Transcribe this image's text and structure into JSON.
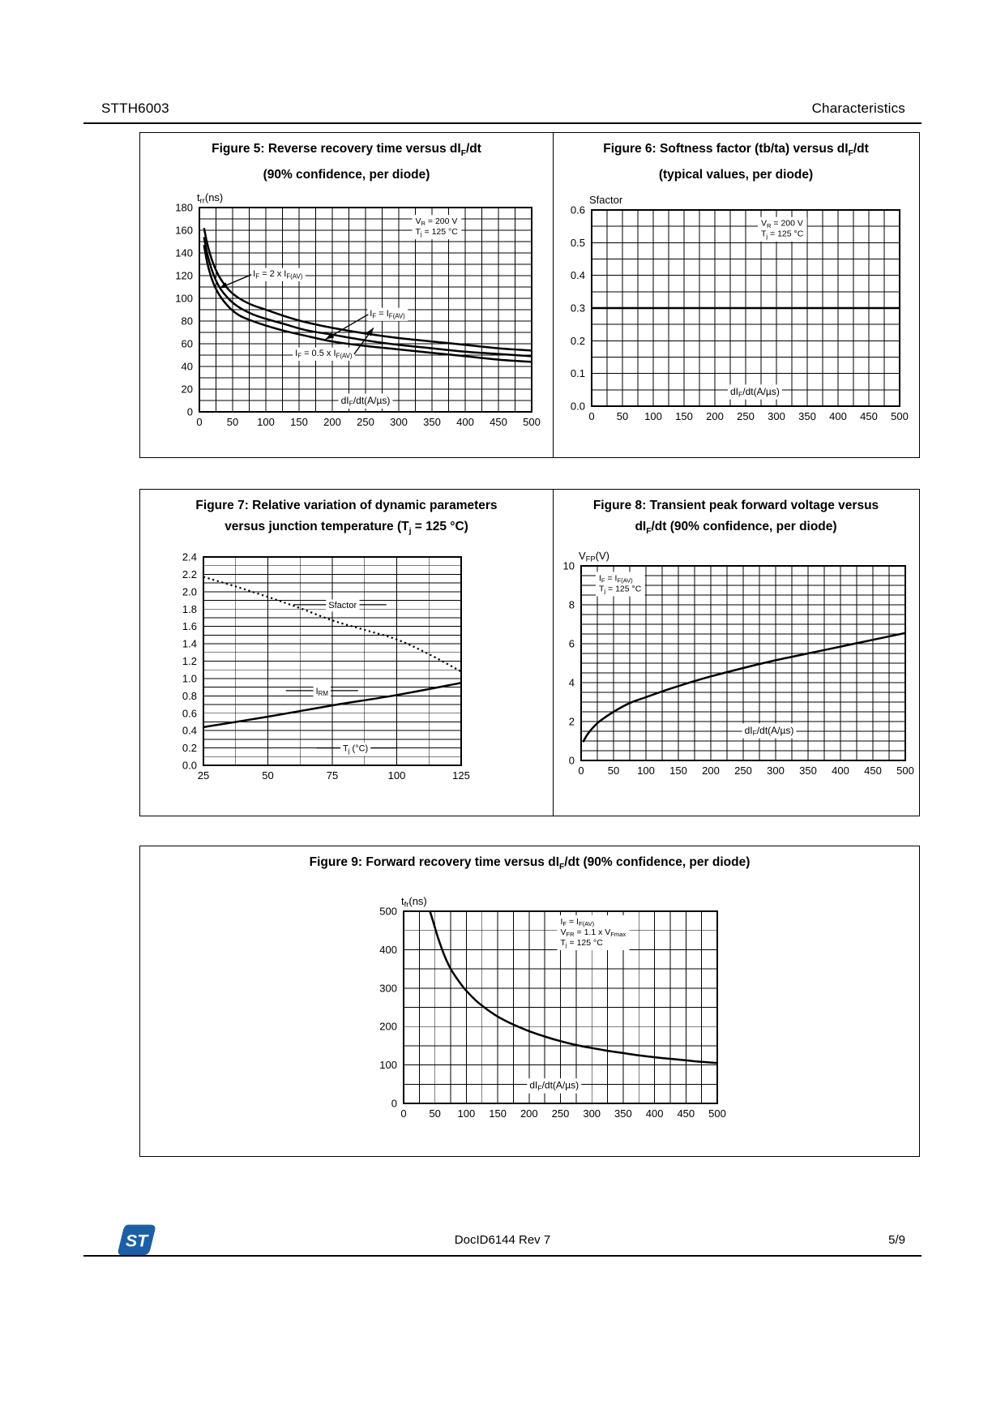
{
  "header": {
    "left": "STTH6003",
    "right": "Characteristics"
  },
  "footer": {
    "doc_id": "DocID6144 Rev 7",
    "page": "5/9",
    "logo_text": "ST",
    "logo_color": "#1d5fa5"
  },
  "figures": {
    "fig5": {
      "title1": [
        {
          "t": "Figure 5: Reverse recovery time versus dI"
        },
        {
          "t": "F",
          "sub": true
        },
        {
          "t": "/dt"
        }
      ],
      "title2": [
        {
          "t": "(90% confidence, per diode)"
        }
      ]
    },
    "fig6": {
      "title1": [
        {
          "t": "Figure 6: Softness factor (tb/ta) versus dI"
        },
        {
          "t": "F",
          "sub": true
        },
        {
          "t": "/dt"
        }
      ],
      "title2": [
        {
          "t": "(typical values, per diode)"
        }
      ]
    },
    "fig7": {
      "title1": [
        {
          "t": "Figure 7: Relative variation of dynamic parameters"
        }
      ],
      "title2": [
        {
          "t": "versus junction temperature (T"
        },
        {
          "t": "j",
          "sub": true
        },
        {
          "t": " = 125 °C)"
        }
      ]
    },
    "fig8": {
      "title1": [
        {
          "t": "Figure 8: Transient peak forward voltage versus"
        }
      ],
      "title2": [
        {
          "t": "dI"
        },
        {
          "t": "F",
          "sub": true
        },
        {
          "t": "/dt (90% confidence, per diode)"
        }
      ]
    },
    "fig9": {
      "title1": [
        {
          "t": "Figure 9: Forward recovery time versus dI"
        },
        {
          "t": "F",
          "sub": true
        },
        {
          "t": "/dt (90% confidence, per diode)"
        }
      ]
    }
  },
  "chart_data": [
    {
      "id": "fig5",
      "type": "line",
      "title": "Reverse recovery time versus dIF/dt (90% confidence, per diode)",
      "xlabel": "dIF/dt(A/µs)",
      "ylabel": "trr(ns)",
      "xlim": [
        0,
        500
      ],
      "ylim": [
        0,
        180
      ],
      "x_tick_step": 50,
      "y_tick_step": 20,
      "x_grid_step": 25,
      "y_grid_step": 10,
      "x_decimals": 0,
      "y_decimals": 0,
      "grid": true,
      "legend_position": "inline-callouts",
      "axis_title": [
        {
          "t": "t"
        },
        {
          "t": "rr",
          "sub": true
        },
        {
          "t": "(ns)"
        }
      ],
      "xlabel_inside": {
        "x": 250,
        "y": 10,
        "segs": [
          {
            "t": "dI"
          },
          {
            "t": "F",
            "sub": true
          },
          {
            "t": "/dt(A/µs)"
          }
        ]
      },
      "conditions": {
        "fx": 0.65,
        "fy": 0.04,
        "lines": [
          [
            {
              "t": "V"
            },
            {
              "t": "R",
              "sub": true
            },
            {
              "t": " = 200 V"
            }
          ],
          [
            {
              "t": "T"
            },
            {
              "t": "j",
              "sub": true
            },
            {
              "t": " = 125 °C"
            }
          ]
        ]
      },
      "series": [
        {
          "name": "IF = 2 x IF(AV)",
          "style": "solid",
          "points": [
            [
              7,
              162
            ],
            [
              12,
              148
            ],
            [
              20,
              132
            ],
            [
              30,
              119
            ],
            [
              45,
              107
            ],
            [
              60,
              100
            ],
            [
              80,
              94
            ],
            [
              100,
              90
            ],
            [
              130,
              84
            ],
            [
              160,
              79
            ],
            [
              200,
              74
            ],
            [
              250,
              69
            ],
            [
              300,
              65
            ],
            [
              350,
              62
            ],
            [
              400,
              59
            ],
            [
              450,
              56
            ],
            [
              500,
              54
            ]
          ]
        },
        {
          "name": "IF = IF(AV)",
          "style": "solid",
          "points": [
            [
              7,
              154
            ],
            [
              12,
              139
            ],
            [
              20,
              123
            ],
            [
              30,
              110
            ],
            [
              45,
              99
            ],
            [
              60,
              92
            ],
            [
              80,
              86
            ],
            [
              100,
              82
            ],
            [
              130,
              77
            ],
            [
              160,
              72
            ],
            [
              200,
              68
            ],
            [
              250,
              63
            ],
            [
              300,
              59
            ],
            [
              350,
              56
            ],
            [
              400,
              53
            ],
            [
              450,
              51
            ],
            [
              500,
              49
            ]
          ]
        },
        {
          "name": "IF = 0.5 x IF(AV)",
          "style": "solid",
          "points": [
            [
              7,
              147
            ],
            [
              12,
              131
            ],
            [
              20,
              115
            ],
            [
              30,
              103
            ],
            [
              45,
              92
            ],
            [
              60,
              85
            ],
            [
              80,
              80
            ],
            [
              100,
              76
            ],
            [
              130,
              71
            ],
            [
              160,
              67
            ],
            [
              200,
              62
            ],
            [
              250,
              58
            ],
            [
              300,
              55
            ],
            [
              350,
              52
            ],
            [
              400,
              49
            ],
            [
              450,
              46
            ],
            [
              500,
              44
            ]
          ]
        }
      ],
      "callouts": [
        {
          "segs": [
            {
              "t": "I"
            },
            {
              "t": "F",
              "sub": true
            },
            {
              "t": " = 2 x I"
            },
            {
              "t": "F(AV)",
              "sub": true
            }
          ],
          "x": 118,
          "y": 122,
          "arrow": [
            30,
            109
          ]
        },
        {
          "segs": [
            {
              "t": "I"
            },
            {
              "t": "F",
              "sub": true
            },
            {
              "t": " = I"
            },
            {
              "t": "F(AV)",
              "sub": true
            }
          ],
          "x": 283,
          "y": 87,
          "arrow": [
            190,
            64
          ]
        },
        {
          "segs": [
            {
              "t": "I"
            },
            {
              "t": "F",
              "sub": true
            },
            {
              "t": " = 0.5 x I"
            },
            {
              "t": "F(AV)",
              "sub": true
            }
          ],
          "x": 187,
          "y": 52,
          "arrow": [
            262,
            74
          ]
        }
      ]
    },
    {
      "id": "fig6",
      "type": "line",
      "title": "Softness factor (tb/ta) versus dIF/dt (typical values, per diode)",
      "xlabel": "dIF/dt(A/µs)",
      "ylabel": "Sfactor",
      "xlim": [
        0,
        500
      ],
      "ylim": [
        0,
        0.6
      ],
      "x_tick_step": 50,
      "y_tick_step": 0.1,
      "x_grid_step": 25,
      "y_grid_step": 0.05,
      "x_decimals": 0,
      "y_decimals": 1,
      "grid": true,
      "axis_title": [
        {
          "t": "Sfactor"
        }
      ],
      "xlabel_inside": {
        "x": 265,
        "y": 0.045,
        "segs": [
          {
            "t": "dI"
          },
          {
            "t": "F",
            "sub": true
          },
          {
            "t": "/dt(A/µs)"
          }
        ]
      },
      "conditions": {
        "fx": 0.55,
        "fy": 0.04,
        "lines": [
          [
            {
              "t": "V"
            },
            {
              "t": "R",
              "sub": true
            },
            {
              "t": " = 200 V"
            }
          ],
          [
            {
              "t": "T"
            },
            {
              "t": "j",
              "sub": true
            },
            {
              "t": " = 125 °C"
            }
          ]
        ]
      },
      "series": [
        {
          "name": "Sfactor",
          "style": "solid",
          "points": [
            [
              0,
              0.3
            ],
            [
              250,
              0.3
            ],
            [
              500,
              0.3
            ]
          ]
        }
      ],
      "callouts": []
    },
    {
      "id": "fig7",
      "type": "line",
      "title": "Relative variation of dynamic parameters versus junction temperature (Tj = 125 °C)",
      "xlabel": "Tj(°C)",
      "ylabel": "relative variation",
      "xlim": [
        25,
        125
      ],
      "ylim": [
        0,
        2.4
      ],
      "x_tick_step": 25,
      "y_tick_step": 0.2,
      "x_grid_step": 12.5,
      "y_grid_step": 0.1,
      "x_decimals": 0,
      "y_decimals": 1,
      "grid": true,
      "legend_position": "inline-callouts",
      "series": [
        {
          "name": "Sfactor",
          "style": "dotted",
          "points": [
            [
              25,
              2.17
            ],
            [
              37.5,
              2.06
            ],
            [
              50,
              1.94
            ],
            [
              62.5,
              1.81
            ],
            [
              75,
              1.67
            ],
            [
              87.5,
              1.56
            ],
            [
              100,
              1.45
            ],
            [
              112.5,
              1.28
            ],
            [
              125,
              1.08
            ]
          ]
        },
        {
          "name": "IRM",
          "style": "solid",
          "points": [
            [
              25,
              0.44
            ],
            [
              50,
              0.56
            ],
            [
              75,
              0.69
            ],
            [
              100,
              0.81
            ],
            [
              125,
              0.95
            ]
          ]
        }
      ],
      "callouts": [
        {
          "segs": [
            {
              "t": "Sfactor"
            }
          ],
          "x": 79,
          "y": 1.85,
          "line": [
            60,
            96
          ]
        },
        {
          "segs": [
            {
              "t": "I"
            },
            {
              "t": "RM",
              "sub": true
            }
          ],
          "x": 71,
          "y": 0.86,
          "line": [
            57,
            85
          ]
        },
        {
          "segs": [
            {
              "t": "T"
            },
            {
              "t": "j",
              "sub": true
            },
            {
              "t": " (°C)"
            }
          ],
          "x": 84,
          "y": 0.2,
          "line": [
            69,
            100
          ]
        }
      ]
    },
    {
      "id": "fig8",
      "type": "line",
      "title": "Transient peak forward voltage versus dIF/dt (90% confidence, per diode)",
      "xlabel": "dIF/dt(A/µs)",
      "ylabel": "VFP(V)",
      "xlim": [
        0,
        500
      ],
      "ylim": [
        0,
        10
      ],
      "x_tick_step": 50,
      "y_tick_step": 2,
      "x_grid_step": 25,
      "y_grid_step": 0.5,
      "x_decimals": 0,
      "y_decimals": 0,
      "grid": true,
      "axis_title": [
        {
          "t": "V"
        },
        {
          "t": "FP",
          "sub": true
        },
        {
          "t": "(V)"
        }
      ],
      "xlabel_inside": {
        "x": 290,
        "y": 1.55,
        "segs": [
          {
            "t": "dI"
          },
          {
            "t": "F",
            "sub": true
          },
          {
            "t": "/dt(A/µs)"
          }
        ]
      },
      "conditions": {
        "fx": 0.055,
        "fy": 0.035,
        "lines": [
          [
            {
              "t": "I"
            },
            {
              "t": "F",
              "sub": true
            },
            {
              "t": " = I"
            },
            {
              "t": "F(AV)",
              "sub": true
            }
          ],
          [
            {
              "t": "T"
            },
            {
              "t": "j",
              "sub": true
            },
            {
              "t": " = 125 °C"
            }
          ]
        ]
      },
      "series": [
        {
          "name": "VFP",
          "style": "solid",
          "points": [
            [
              3,
              0.95
            ],
            [
              10,
              1.35
            ],
            [
              20,
              1.75
            ],
            [
              30,
              2.05
            ],
            [
              50,
              2.5
            ],
            [
              75,
              2.95
            ],
            [
              100,
              3.25
            ],
            [
              125,
              3.55
            ],
            [
              150,
              3.82
            ],
            [
              175,
              4.08
            ],
            [
              200,
              4.32
            ],
            [
              250,
              4.75
            ],
            [
              300,
              5.15
            ],
            [
              350,
              5.5
            ],
            [
              400,
              5.85
            ],
            [
              450,
              6.2
            ],
            [
              500,
              6.55
            ]
          ]
        }
      ],
      "callouts": []
    },
    {
      "id": "fig9",
      "type": "line",
      "title": "Forward recovery time versus dIF/dt (90% confidence, per diode)",
      "xlabel": "dIF/dt(A/µs)",
      "ylabel": "tfr(ns)",
      "xlim": [
        0,
        500
      ],
      "ylim": [
        0,
        500
      ],
      "x_tick_step": 50,
      "y_tick_step": 100,
      "x_grid_step": 25,
      "y_grid_step": 50,
      "x_decimals": 0,
      "y_decimals": 0,
      "grid": true,
      "axis_title": [
        {
          "t": "t"
        },
        {
          "t": "fr",
          "sub": true
        },
        {
          "t": "(ns)"
        }
      ],
      "xlabel_inside": {
        "x": 240,
        "y": 47,
        "segs": [
          {
            "t": "dI"
          },
          {
            "t": "F",
            "sub": true
          },
          {
            "t": "/dt(A/µs)"
          }
        ]
      },
      "conditions": {
        "fx": 0.5,
        "fy": 0.025,
        "lines": [
          [
            {
              "t": "I"
            },
            {
              "t": "F",
              "sub": true
            },
            {
              "t": " = I"
            },
            {
              "t": "F(AV)",
              "sub": true
            }
          ],
          [
            {
              "t": "V"
            },
            {
              "t": "FR",
              "sub": true
            },
            {
              "t": " = 1.1 x V"
            },
            {
              "t": "Fmax",
              "sub": true
            }
          ],
          [
            {
              "t": "T"
            },
            {
              "t": "j",
              "sub": true
            },
            {
              "t": " = 125 °C"
            }
          ]
        ]
      },
      "series": [
        {
          "name": "tfr",
          "style": "solid",
          "points": [
            [
              42,
              500
            ],
            [
              48,
              468
            ],
            [
              55,
              430
            ],
            [
              65,
              385
            ],
            [
              75,
              350
            ],
            [
              88,
              318
            ],
            [
              100,
              293
            ],
            [
              115,
              268
            ],
            [
              130,
              248
            ],
            [
              150,
              226
            ],
            [
              175,
              205
            ],
            [
              200,
              188
            ],
            [
              225,
              174
            ],
            [
              250,
              162
            ],
            [
              275,
              152
            ],
            [
              300,
              144
            ],
            [
              325,
              137
            ],
            [
              350,
              131
            ],
            [
              375,
              125
            ],
            [
              400,
              120
            ],
            [
              425,
              116
            ],
            [
              450,
              112
            ],
            [
              475,
              108
            ],
            [
              500,
              105
            ]
          ]
        }
      ],
      "callouts": []
    }
  ]
}
